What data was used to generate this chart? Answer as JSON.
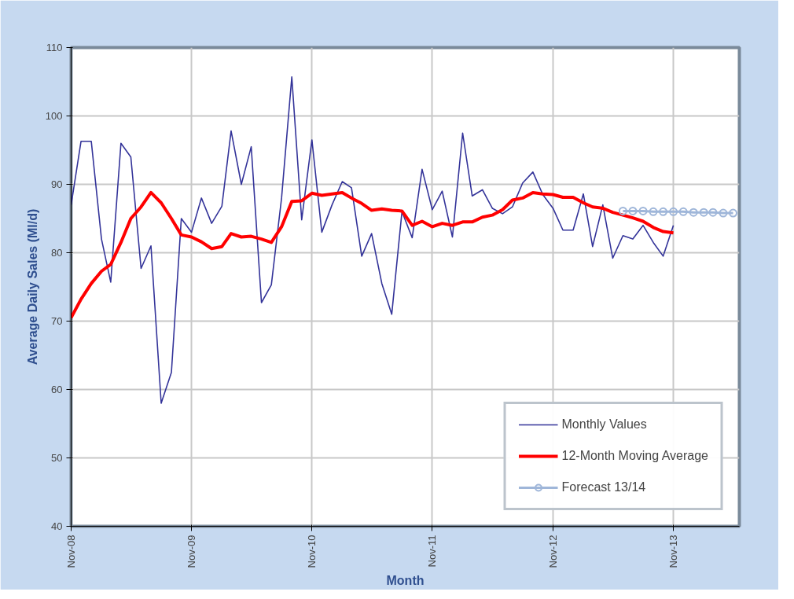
{
  "chart_data": {
    "type": "line",
    "xlabel": "Month",
    "ylabel": "Average Daily Sales (Ml/d)",
    "x": [
      "2008-11",
      "2008-12",
      "2009-01",
      "2009-02",
      "2009-03",
      "2009-04",
      "2009-05",
      "2009-06",
      "2009-07",
      "2009-08",
      "2009-09",
      "2009-10",
      "2009-11",
      "2009-12",
      "2010-01",
      "2010-02",
      "2010-03",
      "2010-04",
      "2010-05",
      "2010-06",
      "2010-07",
      "2010-08",
      "2010-09",
      "2010-10",
      "2010-11",
      "2010-12",
      "2011-01",
      "2011-02",
      "2011-03",
      "2011-04",
      "2011-05",
      "2011-06",
      "2011-07",
      "2011-08",
      "2011-09",
      "2011-10",
      "2011-11",
      "2011-12",
      "2012-01",
      "2012-02",
      "2012-03",
      "2012-04",
      "2012-05",
      "2012-06",
      "2012-07",
      "2012-08",
      "2012-09",
      "2012-10",
      "2012-11",
      "2012-12",
      "2013-01",
      "2013-02",
      "2013-03",
      "2013-04",
      "2013-05",
      "2013-06",
      "2013-07",
      "2013-08",
      "2013-09",
      "2013-10",
      "2013-11"
    ],
    "series": [
      {
        "name": "Monthly Values",
        "color": "#333399",
        "marker": "none",
        "values": [
          87,
          96.3,
          96.3,
          82,
          75.7,
          96,
          94,
          77.7,
          81,
          58,
          62.5,
          85,
          83,
          88,
          84.3,
          86.8,
          97.8,
          90,
          95.5,
          72.7,
          75.3,
          88,
          105.7,
          84.8,
          96.5,
          83,
          87,
          90.4,
          89.5,
          79.5,
          82.8,
          75.5,
          71,
          86,
          82.2,
          92.2,
          86.3,
          89,
          82.3,
          97.5,
          88.3,
          89.2,
          86.5,
          85.7,
          86.7,
          90.2,
          91.8,
          88.5,
          86.5,
          83.3,
          83.3,
          88.6,
          80.9,
          87,
          79.2,
          82.5,
          82,
          84,
          81.5,
          79.5,
          84
        ]
      },
      {
        "name": "12-Month Moving Average",
        "color": "#ff0000",
        "marker": "none",
        "values": [
          70.5,
          73.2,
          75.5,
          77.3,
          78.3,
          81.5,
          85,
          86.7,
          88.8,
          87.3,
          85,
          82.6,
          82.3,
          81.6,
          80.6,
          80.9,
          82.8,
          82.3,
          82.4,
          82,
          81.5,
          83.8,
          87.5,
          87.6,
          88.7,
          88.4,
          88.6,
          88.8,
          88,
          87.2,
          86.2,
          86.4,
          86.2,
          86.1,
          84,
          84.6,
          83.8,
          84.3,
          84,
          84.5,
          84.5,
          85.2,
          85.5,
          86.3,
          87.7,
          88,
          88.8,
          88.6,
          88.5,
          88.1,
          88.1,
          87.3,
          86.7,
          86.5,
          85.9,
          85.5,
          85.1,
          84.6,
          83.7,
          83.1,
          82.9
        ]
      },
      {
        "name": "Forecast 13/14",
        "color": "#9fb6d9",
        "marker": "circle",
        "x": [
          "2013-06",
          "2013-07",
          "2013-08",
          "2013-09",
          "2013-10",
          "2013-11",
          "2013-12",
          "2014-01",
          "2014-02",
          "2014-03",
          "2014-04",
          "2014-05"
        ],
        "values": [
          86.1,
          86.1,
          86.1,
          86.0,
          86.0,
          86.0,
          86.0,
          85.9,
          85.9,
          85.9,
          85.8,
          85.8
        ]
      }
    ],
    "xlim": [
      "2008-11",
      "2014-05-20"
    ],
    "xticks": [
      {
        "value": "2008-11",
        "label": "Nov-08"
      },
      {
        "value": "2009-11",
        "label": "Nov-09"
      },
      {
        "value": "2010-11",
        "label": "Nov-10"
      },
      {
        "value": "2011-11",
        "label": "Nov-11"
      },
      {
        "value": "2012-11",
        "label": "Nov-12"
      },
      {
        "value": "2013-11",
        "label": "Nov-13"
      }
    ],
    "ylim": [
      40,
      110
    ],
    "yticks": [
      40,
      50,
      60,
      70,
      80,
      90,
      100,
      110
    ],
    "grid": true,
    "legend": "bottom right"
  }
}
